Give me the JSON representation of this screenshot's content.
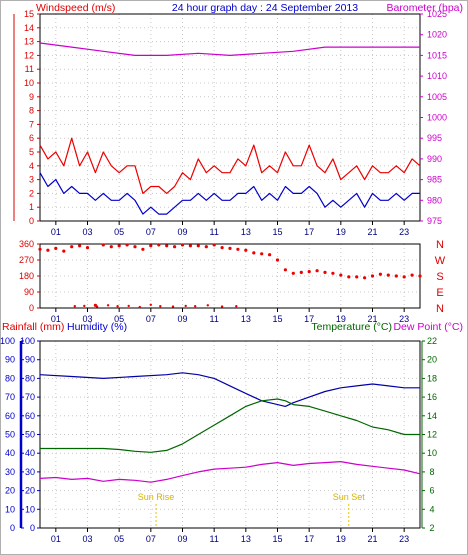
{
  "chart_data": [
    {
      "type": "line",
      "title": "24 hour graph day : 24 September 2013",
      "left_axis_title": "Windspeed (m/s)",
      "right_axis_title": "Barometer (hpa)",
      "x_ticks": [
        "01",
        "03",
        "05",
        "07",
        "09",
        "11",
        "13",
        "15",
        "17",
        "19",
        "21",
        "23"
      ],
      "left_ticks": [
        "0",
        "1",
        "2",
        "3",
        "4",
        "5",
        "6",
        "7",
        "8",
        "9",
        "10",
        "11",
        "12",
        "13",
        "14",
        "15"
      ],
      "right_ticks": [
        "975",
        "980",
        "985",
        "990",
        "995",
        "1000",
        "1005",
        "1010",
        "1015",
        "1020",
        "1025"
      ],
      "ylim_left": [
        0,
        15
      ],
      "ylim_right": [
        975,
        1025
      ],
      "x_range_hours": [
        0,
        24
      ],
      "grid": true,
      "series": [
        {
          "axis": "right",
          "color": "#cc00cc",
          "x": [
            0,
            2,
            4,
            6,
            7,
            8,
            10,
            12,
            14,
            16,
            18,
            20,
            22,
            24
          ],
          "values": [
            1018,
            1017,
            1016,
            1015,
            1015,
            1015,
            1015.5,
            1015,
            1015.5,
            1016,
            1017,
            1017,
            1017,
            1017
          ]
        },
        {
          "axis": "left",
          "color": "#ee0000",
          "x": [
            0,
            0.5,
            1,
            1.5,
            2,
            2.5,
            3,
            3.5,
            4,
            4.5,
            5,
            5.5,
            6,
            6.5,
            7,
            7.5,
            8,
            8.5,
            9,
            9.5,
            10,
            10.5,
            11,
            11.5,
            12,
            12.5,
            13,
            13.5,
            14,
            14.5,
            15,
            15.5,
            16,
            16.5,
            17,
            17.5,
            18,
            18.5,
            19,
            19.5,
            20,
            20.5,
            21,
            21.5,
            22,
            22.5,
            23,
            23.5,
            24
          ],
          "values": [
            5.5,
            4.5,
            5,
            4,
            6,
            4,
            5,
            3.5,
            5,
            4,
            3.5,
            4,
            4,
            2,
            2.5,
            2.5,
            2,
            2.5,
            3.5,
            3,
            4.5,
            3.5,
            4,
            3.5,
            3.5,
            4.5,
            4,
            5.5,
            3.5,
            4,
            3.5,
            5,
            4,
            4,
            5.5,
            4,
            3.5,
            4.5,
            3,
            3.5,
            4,
            3,
            4,
            3.5,
            3.5,
            4,
            3.5,
            4.5,
            4
          ]
        },
        {
          "axis": "left",
          "color": "#0000cc",
          "x": [
            0,
            0.5,
            1,
            1.5,
            2,
            2.5,
            3,
            3.5,
            4,
            4.5,
            5,
            5.5,
            6,
            6.5,
            7,
            7.5,
            8,
            8.5,
            9,
            9.5,
            10,
            10.5,
            11,
            11.5,
            12,
            12.5,
            13,
            13.5,
            14,
            14.5,
            15,
            15.5,
            16,
            16.5,
            17,
            17.5,
            18,
            18.5,
            19,
            19.5,
            20,
            20.5,
            21,
            21.5,
            22,
            22.5,
            23,
            23.5,
            24
          ],
          "values": [
            3.5,
            2.5,
            3,
            2,
            2.5,
            2,
            2,
            1.5,
            2,
            1.5,
            1.5,
            2,
            1.5,
            0.5,
            1,
            0.5,
            0.5,
            1,
            1.5,
            1.5,
            2,
            1.5,
            2,
            1.5,
            1.5,
            2,
            2,
            2.5,
            1.5,
            2,
            1.5,
            2.5,
            2,
            2,
            2.5,
            2,
            1,
            1.5,
            1,
            1.5,
            2,
            1,
            2,
            1.5,
            1.5,
            2,
            1.5,
            2,
            2
          ]
        }
      ]
    },
    {
      "type": "scatter",
      "left_ticks": [
        "0",
        "90",
        "180",
        "270",
        "360"
      ],
      "right_labels": [
        "N",
        "W",
        "S",
        "E",
        "N"
      ],
      "ylim": [
        0,
        360
      ],
      "x_range_hours": [
        0,
        24
      ],
      "series": [
        {
          "name": "wind direction",
          "color": "#ee0000",
          "x": [
            0,
            0.5,
            1,
            1.5,
            2,
            2.5,
            3,
            3.5,
            4,
            4.5,
            5,
            5.5,
            6,
            6.5,
            7,
            7.5,
            8,
            8.5,
            9,
            9.5,
            10,
            10.5,
            11,
            11.5,
            12,
            12.5,
            13,
            13.5,
            14,
            14.5,
            15,
            15.5,
            16,
            16.5,
            17,
            17.5,
            18,
            18.5,
            19,
            19.5,
            20,
            20.5,
            21,
            21.5,
            22,
            22.5,
            23,
            23.5,
            24
          ],
          "values": [
            330,
            325,
            335,
            320,
            345,
            350,
            340,
            15,
            355,
            345,
            350,
            355,
            345,
            330,
            350,
            355,
            350,
            345,
            355,
            350,
            350,
            345,
            355,
            340,
            335,
            330,
            325,
            310,
            305,
            300,
            270,
            215,
            195,
            200,
            205,
            210,
            200,
            195,
            185,
            175,
            175,
            170,
            180,
            190,
            185,
            180,
            175,
            185,
            180
          ]
        },
        {
          "name": "north crossings",
          "color": "#ee0000",
          "x": [
            2.2,
            2.8,
            3.6,
            4.3,
            4.9,
            5.6,
            6.3,
            7.0,
            7.6,
            8.4,
            9.2,
            9.8,
            10.6,
            11.5,
            12.4
          ],
          "values": [
            10,
            12,
            8,
            15,
            10,
            12,
            5,
            18,
            10,
            8,
            12,
            10,
            15,
            8,
            10
          ]
        }
      ]
    },
    {
      "type": "line",
      "rain_axis_title": "Rainfall (mm)",
      "humidity_axis_title": "Humidity (%)",
      "temp_axis_title": "Temperature (°C)",
      "dew_axis_title": "Dew Point (°C)",
      "humidity_ticks": [
        "0",
        "10",
        "20",
        "30",
        "40",
        "50",
        "60",
        "70",
        "80",
        "90",
        "100"
      ],
      "rain_ticks": [
        "0",
        "10",
        "20",
        "30",
        "40",
        "50",
        "60",
        "70",
        "80",
        "90",
        "100"
      ],
      "temp_ticks": [
        "2",
        "4",
        "6",
        "8",
        "10",
        "12",
        "14",
        "16",
        "18",
        "20",
        "22"
      ],
      "ylim_percent": [
        0,
        100
      ],
      "ylim_temp": [
        2,
        22
      ],
      "x_range_hours": [
        0,
        24
      ],
      "annotations": [
        {
          "label": "Sun Rise",
          "hour": 7.33
        },
        {
          "label": "Sun Set",
          "hour": 19.5
        }
      ],
      "series": [
        {
          "axis": "percent",
          "color": "#0000aa",
          "x": [
            0,
            2,
            4,
            6,
            8,
            9,
            10,
            11,
            12,
            13,
            14,
            15,
            15.5,
            16,
            17,
            18,
            19,
            20,
            21,
            22,
            23,
            24
          ],
          "values": [
            82,
            81,
            80,
            81,
            82,
            83,
            82,
            80,
            76,
            72,
            68,
            66,
            65,
            67,
            70,
            73,
            75,
            76,
            77,
            76,
            75,
            75
          ]
        },
        {
          "axis": "temp",
          "color": "#006600",
          "x": [
            0,
            1,
            2,
            3,
            4,
            5,
            6,
            7,
            8,
            9,
            10,
            11,
            12,
            13,
            14,
            15,
            15.5,
            16,
            17,
            18,
            19,
            20,
            21,
            22,
            23,
            24
          ],
          "values": [
            10.5,
            10.5,
            10.5,
            10.5,
            10.5,
            10.4,
            10.2,
            10.1,
            10.3,
            11,
            12,
            13,
            14,
            15,
            15.6,
            15.8,
            15.6,
            15.2,
            15,
            14.5,
            14,
            13.5,
            12.8,
            12.5,
            12,
            12
          ]
        },
        {
          "axis": "temp",
          "color": "#cc00cc",
          "x": [
            0,
            1,
            2,
            3,
            4,
            5,
            6,
            7,
            8,
            9,
            10,
            11,
            12,
            13,
            14,
            15,
            16,
            17,
            18,
            19,
            20,
            21,
            22,
            23,
            24
          ],
          "values": [
            7.3,
            7.4,
            7.2,
            7.3,
            7.0,
            7.2,
            7.1,
            6.9,
            7.2,
            7.6,
            8.0,
            8.3,
            8.4,
            8.5,
            8.8,
            9.0,
            8.7,
            8.9,
            9.0,
            9.1,
            8.8,
            8.6,
            8.4,
            8.2,
            7.8
          ]
        }
      ]
    }
  ]
}
